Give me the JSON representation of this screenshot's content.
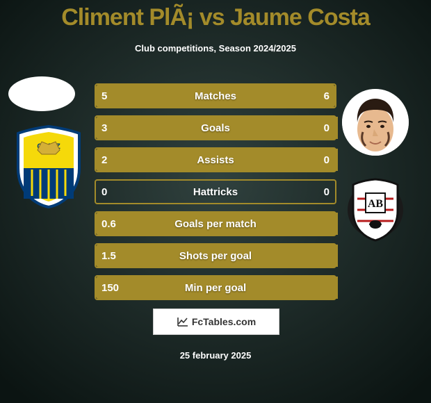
{
  "title": "Climent PlÃ¡ vs Jaume Costa",
  "title_color": "#a38b2a",
  "title_fontsize": 34,
  "subtitle": "Club competitions, Season 2024/2025",
  "subtitle_color": "#ffffff",
  "date": "25 february 2025",
  "date_color": "#ffffff",
  "brand_text": "FcTables.com",
  "background_gradient": {
    "inner": "#30413e",
    "outer": "#0b1412"
  },
  "bar_style": {
    "track_border_color": "#a38b2a",
    "fill_color": "#a38b2a",
    "empty_color": "transparent",
    "label_color": "#ffffff",
    "value_color": "#ffffff",
    "fontsize": 15
  },
  "bars": [
    {
      "label": "Matches",
      "left": "5",
      "right": "6",
      "left_frac": 0.45,
      "right_frac": 0.55
    },
    {
      "label": "Goals",
      "left": "3",
      "right": "0",
      "left_frac": 1.0,
      "right_frac": 0.0
    },
    {
      "label": "Assists",
      "left": "2",
      "right": "0",
      "left_frac": 1.0,
      "right_frac": 0.0
    },
    {
      "label": "Hattricks",
      "left": "0",
      "right": "0",
      "left_frac": 0.0,
      "right_frac": 0.0
    },
    {
      "label": "Goals per match",
      "left": "0.6",
      "right": "",
      "left_frac": 1.0,
      "right_frac": 0.0
    },
    {
      "label": "Shots per goal",
      "left": "1.5",
      "right": "",
      "left_frac": 1.0,
      "right_frac": 0.0
    },
    {
      "label": "Min per goal",
      "left": "150",
      "right": "",
      "left_frac": 1.0,
      "right_frac": 0.0
    }
  ],
  "left_player": {
    "avatar_bg": "#f0f0f0",
    "club_primary": "#f5d90a",
    "club_secondary": "#003b77",
    "club_name": "CADIZ"
  },
  "right_player": {
    "avatar_skin": "#e7b98f",
    "avatar_hair": "#2a1b12",
    "club_primary": "#ffffff",
    "club_secondary": "#111111",
    "club_name": "AB"
  }
}
